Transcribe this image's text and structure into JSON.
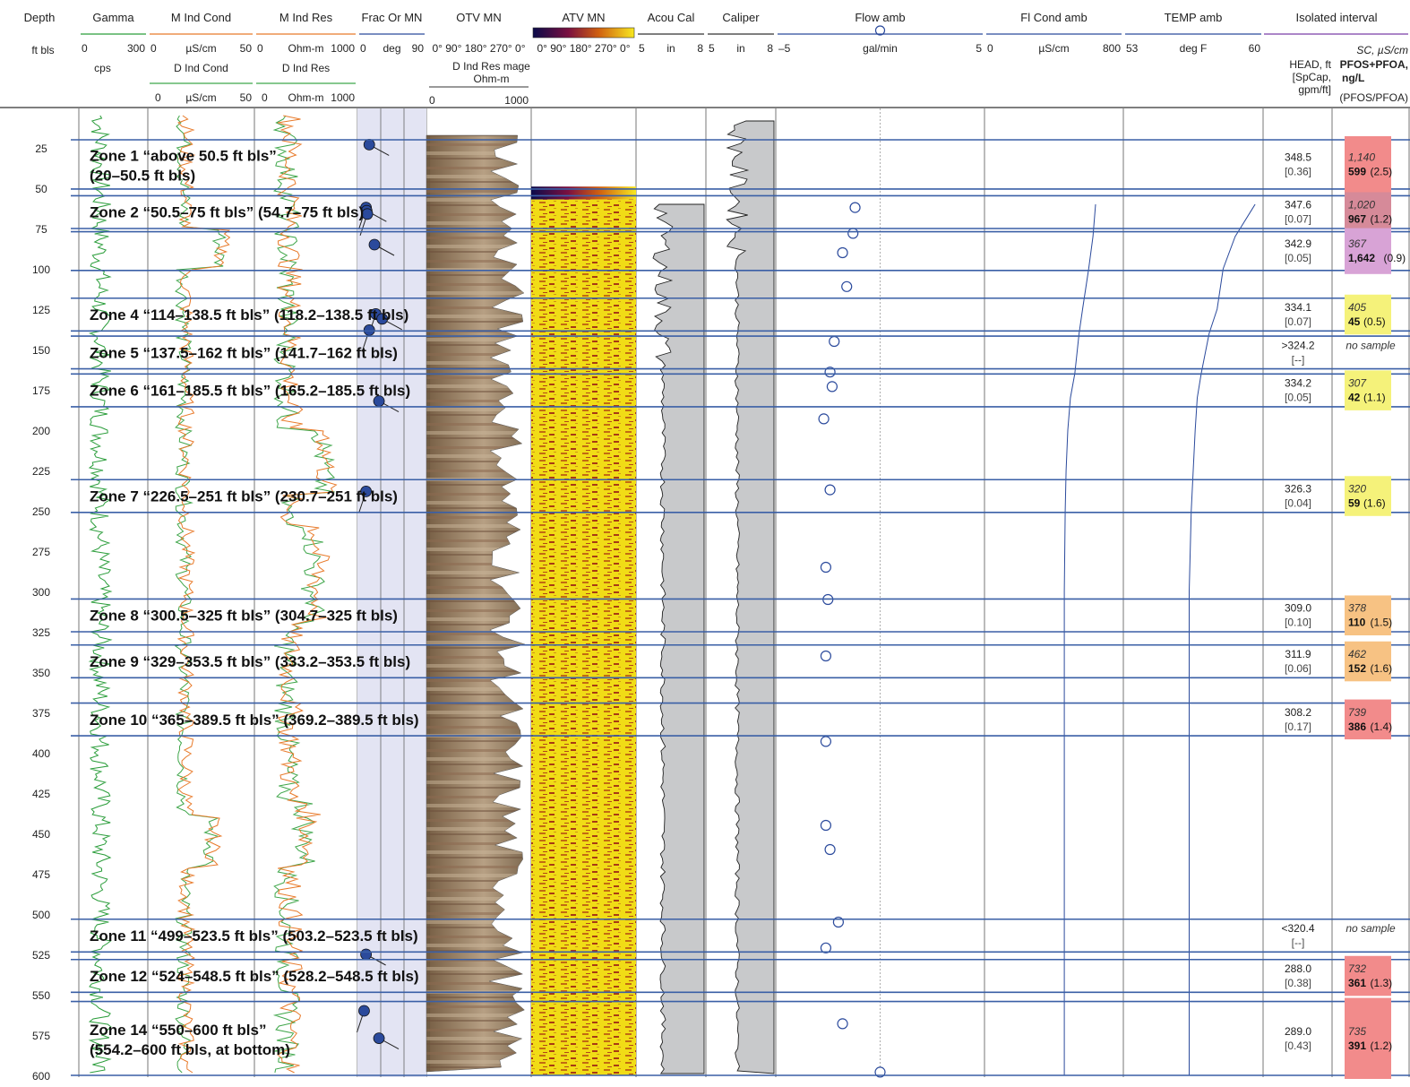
{
  "chart_data": {
    "type": "borehole-log",
    "depth_axis": {
      "header": "Depth",
      "unit": "ft bls",
      "range": [
        0,
        600
      ],
      "ticks": [
        25,
        50,
        75,
        100,
        125,
        150,
        175,
        200,
        225,
        250,
        275,
        300,
        325,
        350,
        375,
        400,
        425,
        450,
        475,
        500,
        525,
        550,
        575,
        600
      ]
    },
    "tracks": [
      {
        "id": "gamma",
        "title": "Gamma",
        "min": "0",
        "max": "300",
        "unit": "",
        "sub": "cps",
        "color": "#2a9d3a"
      },
      {
        "id": "mcond",
        "title": "M Ind Cond",
        "min": "0",
        "max": "50",
        "unit": "µS/cm",
        "sub": "D Ind Cond",
        "sub_min": "0",
        "sub_max": "50",
        "sub_unit": "µS/cm",
        "color": "#e87a2a",
        "sub_color": "#3fa64a"
      },
      {
        "id": "mres",
        "title": "M Ind Res",
        "min": "0",
        "max": "1000",
        "unit": "Ohm-m",
        "sub": "D Ind Res",
        "sub_min": "0",
        "sub_max": "1000",
        "sub_unit": "Ohm-m",
        "color": "#e87a2a",
        "sub_color": "#3fa64a"
      },
      {
        "id": "frac",
        "title": "Frac Or MN",
        "min": "0",
        "max": "90",
        "unit": "deg",
        "color": "#2b4a9c"
      },
      {
        "id": "otv",
        "title": "OTV MN",
        "ticks": "0° 90° 180° 270° 0°",
        "sub": "D Ind Res mage",
        "sub_unit": "Ohm-m",
        "sub_min": "0",
        "sub_max": "1000"
      },
      {
        "id": "atv",
        "title": "ATV MN",
        "ticks": "0° 90° 180° 270° 0°"
      },
      {
        "id": "acou",
        "title": "Acou Cal",
        "min": "5",
        "max": "8",
        "unit": "in"
      },
      {
        "id": "cal",
        "title": "Caliper",
        "min": "5",
        "max": "8",
        "unit": "in"
      },
      {
        "id": "flow",
        "title": "Flow amb",
        "min": "–5",
        "max": "5",
        "unit": "gal/min",
        "color": "#2b4a9c"
      },
      {
        "id": "flcond",
        "title": "Fl Cond amb",
        "min": "0",
        "max": "800",
        "unit": "µS/cm",
        "color": "#2b4a9c"
      },
      {
        "id": "temp",
        "title": "TEMP amb",
        "min": "53",
        "max": "60",
        "unit": "deg F",
        "color": "#2b4a9c"
      }
    ],
    "isolated_interval": {
      "title": "Isolated interval",
      "head_label": [
        "HEAD, ft",
        "[SpCap,",
        "gpm/ft]"
      ],
      "sc_label": [
        "SC, µS/cm",
        "PFOS+PFOA,",
        "ng/L",
        "(PFOS/PFOA)"
      ]
    },
    "zones": [
      {
        "label": "Zone 1 “above 50.5 ft bls”",
        "label2": "(20–50.5 ft bls)",
        "top": 20,
        "bottom": 50.5,
        "head": "348.5",
        "spcap": "[0.36]",
        "sc": "1,140",
        "pfas": "599",
        "ratio": "(2.5)",
        "color": "#f28b8b"
      },
      {
        "label": "Zone 2 “50.5–75 ft bls” (54.7–75 ft bls)",
        "label2": "",
        "top": 54.7,
        "bottom": 75,
        "head": "347.6",
        "spcap": "[0.07]",
        "sc": "1,020",
        "pfas": "967",
        "ratio": "(1.2)",
        "color": "#d68a99"
      },
      {
        "label": "",
        "label2": "",
        "top": 77,
        "bottom": 101,
        "head": "342.9",
        "spcap": "[0.05]",
        "sc": "367",
        "pfas": "1,642",
        "ratio": "(0.9)",
        "color": "#d8a3d6"
      },
      {
        "label": "Zone 4 “114–138.5 ft bls” (118.2–138.5 ft bls)",
        "label2": "",
        "top": 118.2,
        "bottom": 138.5,
        "head": "334.1",
        "spcap": "[0.07]",
        "sc": "405",
        "pfas": "45",
        "ratio": "(0.5)",
        "color": "#f5f27a"
      },
      {
        "label": "Zone 5 “137.5–162 ft bls” (141.7–162 ft bls)",
        "label2": "",
        "top": 141.7,
        "bottom": 162,
        "head": ">324.2",
        "spcap": "[--]",
        "sc": "no sample",
        "pfas": "",
        "ratio": "",
        "color": ""
      },
      {
        "label": "Zone 6 “161–185.5 ft bls” (165.2–185.5 ft bls)",
        "label2": "",
        "top": 165.2,
        "bottom": 185.5,
        "head": "334.2",
        "spcap": "[0.05]",
        "sc": "307",
        "pfas": "42",
        "ratio": "(1.1)",
        "color": "#f5f27a"
      },
      {
        "label": "Zone 7 “226.5–251 ft bls” (230.7–251 ft bls)",
        "label2": "",
        "top": 230.7,
        "bottom": 251,
        "head": "326.3",
        "spcap": "[0.04]",
        "sc": "320",
        "pfas": "59",
        "ratio": "(1.6)",
        "color": "#f5f27a"
      },
      {
        "label": "Zone 8 “300.5–325 ft bls” (304.7–325 ft bls)",
        "label2": "",
        "top": 304.7,
        "bottom": 325,
        "head": "309.0",
        "spcap": "[0.10]",
        "sc": "378",
        "pfas": "110",
        "ratio": "(1.5)",
        "color": "#f7c283"
      },
      {
        "label": "Zone 9 “329–353.5 ft bls” (333.2–353.5 ft bls)",
        "label2": "",
        "top": 333.2,
        "bottom": 353.5,
        "head": "311.9",
        "spcap": "[0.06]",
        "sc": "462",
        "pfas": "152",
        "ratio": "(1.6)",
        "color": "#f7c283"
      },
      {
        "label": "Zone 10 “365–389.5 ft bls” (369.2–389.5 ft bls)",
        "label2": "",
        "top": 369.2,
        "bottom": 389.5,
        "head": "308.2",
        "spcap": "[0.17]",
        "sc": "739",
        "pfas": "386",
        "ratio": "(1.4)",
        "color": "#f28b8b"
      },
      {
        "label": "Zone 11 “499–523.5 ft bls” (503.2–523.5 ft bls)",
        "label2": "",
        "top": 503.2,
        "bottom": 523.5,
        "head": "<320.4",
        "spcap": "[--]",
        "sc": "no sample",
        "pfas": "",
        "ratio": "",
        "color": ""
      },
      {
        "label": "Zone 12 “524–548.5 ft bls” (528.2–548.5 ft bls)",
        "label2": "",
        "top": 528.2,
        "bottom": 548.5,
        "head": "288.0",
        "spcap": "[0.38]",
        "sc": "732",
        "pfas": "361",
        "ratio": "(1.3)",
        "color": "#f28b8b"
      },
      {
        "label": "Zone 14 “550–600 ft bls”",
        "label2": "(554.2–600 ft bls, at bottom)",
        "top": 554.2,
        "bottom": 600,
        "head": "289.0",
        "spcap": "[0.43]",
        "sc": "735",
        "pfas": "391",
        "ratio": "(1.2)",
        "color": "#f28b8b"
      }
    ],
    "flow_points": [
      {
        "depth": 62,
        "value": -1.2
      },
      {
        "depth": 78,
        "value": -1.3
      },
      {
        "depth": 90,
        "value": -1.8
      },
      {
        "depth": 111,
        "value": -1.6
      },
      {
        "depth": 145,
        "value": -2.2
      },
      {
        "depth": 164,
        "value": -2.4
      },
      {
        "depth": 173,
        "value": -2.3
      },
      {
        "depth": 193,
        "value": -2.7
      },
      {
        "depth": 237,
        "value": -2.4
      },
      {
        "depth": 285,
        "value": -2.6
      },
      {
        "depth": 305,
        "value": -2.5
      },
      {
        "depth": 340,
        "value": -2.6
      },
      {
        "depth": 393,
        "value": -2.6
      },
      {
        "depth": 445,
        "value": -2.6
      },
      {
        "depth": 460,
        "value": -2.4
      },
      {
        "depth": 505,
        "value": -2.0
      },
      {
        "depth": 521,
        "value": -2.6
      },
      {
        "depth": 568,
        "value": -1.8
      },
      {
        "depth": 598,
        "value": 0
      }
    ],
    "frac_points": [
      {
        "depth": 23,
        "value": 10
      },
      {
        "depth": 62,
        "value": 5
      },
      {
        "depth": 64,
        "value": 6
      },
      {
        "depth": 66,
        "value": 7
      },
      {
        "depth": 85,
        "value": 18
      },
      {
        "depth": 128,
        "value": 20
      },
      {
        "depth": 131,
        "value": 30
      },
      {
        "depth": 138,
        "value": 10
      },
      {
        "depth": 182,
        "value": 25
      },
      {
        "depth": 238,
        "value": 5
      },
      {
        "depth": 525,
        "value": 5
      },
      {
        "depth": 560,
        "value": 2
      },
      {
        "depth": 577,
        "value": 25
      }
    ],
    "flcond_profile": [
      [
        60,
        640
      ],
      [
        80,
        625
      ],
      [
        100,
        600
      ],
      [
        125,
        565
      ],
      [
        140,
        545
      ],
      [
        165,
        520
      ],
      [
        180,
        495
      ],
      [
        200,
        480
      ],
      [
        225,
        470
      ],
      [
        250,
        465
      ],
      [
        300,
        460
      ],
      [
        400,
        460
      ],
      [
        500,
        460
      ],
      [
        600,
        460
      ]
    ],
    "temp_profile": [
      [
        60,
        59.6
      ],
      [
        80,
        58.6
      ],
      [
        100,
        58.0
      ],
      [
        125,
        57.7
      ],
      [
        140,
        57.3
      ],
      [
        165,
        56.9
      ],
      [
        180,
        56.7
      ],
      [
        200,
        56.6
      ],
      [
        225,
        56.5
      ],
      [
        250,
        56.4
      ],
      [
        300,
        56.3
      ],
      [
        400,
        56.3
      ],
      [
        500,
        56.3
      ],
      [
        600,
        56.3
      ]
    ]
  }
}
